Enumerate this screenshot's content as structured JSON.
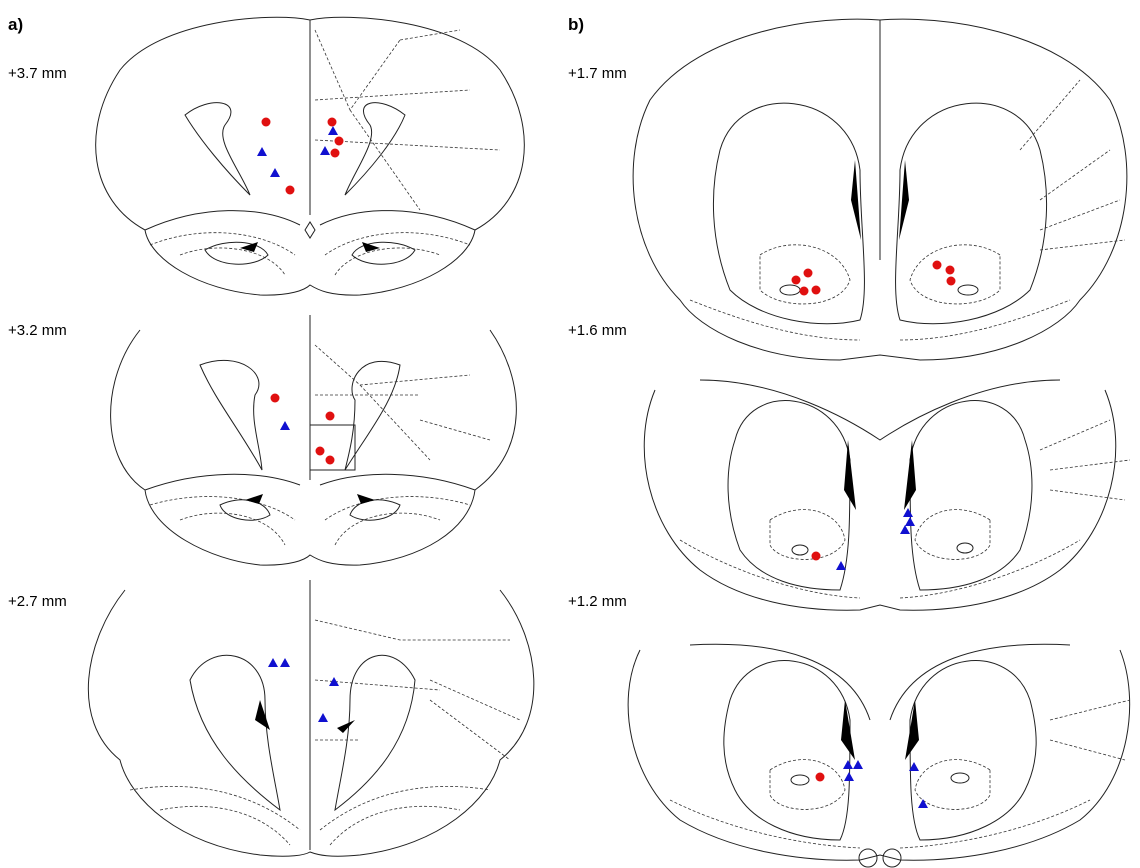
{
  "panels": [
    {
      "label": "a)",
      "sections": [
        {
          "label": "+3.7 mm"
        },
        {
          "label": "+3.2 mm"
        },
        {
          "label": "+2.7 mm"
        }
      ]
    },
    {
      "label": "b)",
      "sections": [
        {
          "label": "+1.7 mm"
        },
        {
          "label": "+1.6 mm"
        },
        {
          "label": "+1.2 mm"
        }
      ]
    }
  ]
}
